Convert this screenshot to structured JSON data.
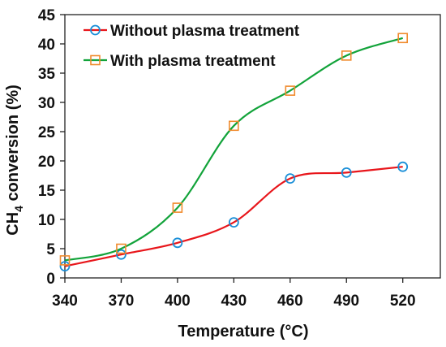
{
  "chart_data": {
    "type": "line",
    "title": "",
    "xlabel": "Temperature (°C)",
    "ylabel_main": "CH",
    "ylabel_sub": "4",
    "ylabel_rest": " conversion (%)",
    "x": [
      340,
      370,
      400,
      430,
      460,
      490,
      520
    ],
    "xlim": [
      340,
      540
    ],
    "ylim": [
      0,
      45
    ],
    "x_ticks": [
      "340",
      "370",
      "400",
      "430",
      "460",
      "490",
      "520"
    ],
    "y_ticks": [
      "0",
      "5",
      "10",
      "15",
      "20",
      "25",
      "30",
      "35",
      "40",
      "45"
    ],
    "legend_position": "top-left",
    "grid": false,
    "series": [
      {
        "name": "Without plasma treatment",
        "color": "#e8161b",
        "marker": "circle",
        "marker_color": "#1a8fd8",
        "values": [
          2,
          4,
          6,
          9.5,
          17,
          18,
          19
        ]
      },
      {
        "name": "With plasma treatment",
        "color": "#12a33a",
        "marker": "square",
        "marker_color": "#f08b2e",
        "values": [
          3,
          5,
          12,
          26,
          32,
          38,
          41
        ]
      }
    ]
  }
}
